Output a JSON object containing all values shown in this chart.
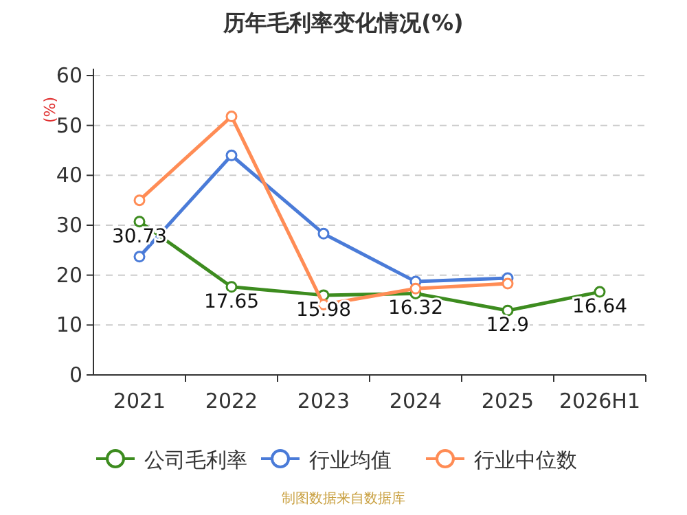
{
  "chart_data": {
    "type": "line",
    "title": "历年毛利率变化情况(%)",
    "ylabel": "(%)",
    "categories": [
      "2021",
      "2022",
      "2023",
      "2024",
      "2025",
      "2026H1"
    ],
    "series": [
      {
        "name": "公司毛利率",
        "color": "#3d8c1f",
        "values": [
          30.73,
          17.65,
          15.98,
          16.32,
          12.9,
          16.64
        ],
        "value_labels": [
          "30.73",
          "17.65",
          "15.98",
          "16.32",
          "12.9",
          "16.64"
        ]
      },
      {
        "name": "行业均值",
        "color": "#4a7bd8",
        "values": [
          23.7,
          44,
          28.3,
          18.7,
          19.4,
          null
        ]
      },
      {
        "name": "行业中位数",
        "color": "#ff8c55",
        "values": [
          35,
          51.8,
          14.1,
          17.3,
          18.3,
          null
        ]
      }
    ],
    "ylim": [
      0,
      60
    ],
    "yticks": [
      0,
      10,
      20,
      30,
      40,
      50,
      60
    ],
    "grid": "y",
    "legend": "bottom",
    "marker": "circle",
    "annotations": [
      "制图数据来自数据库"
    ]
  }
}
